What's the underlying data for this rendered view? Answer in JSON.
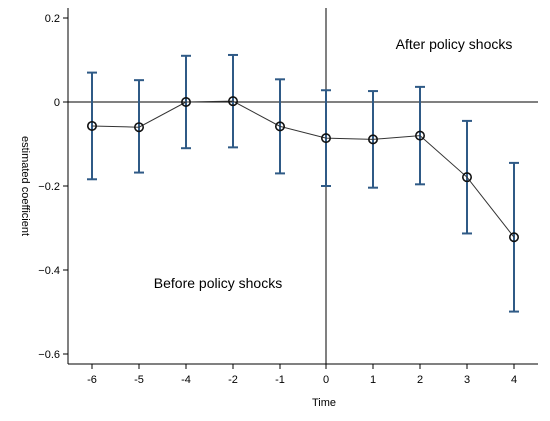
{
  "chart_data": {
    "type": "line",
    "xlabel": "Time",
    "ylabel": "estimated coefficient",
    "categories": [
      "-6",
      "-5",
      "-4",
      "-2",
      "-1",
      "0",
      "1",
      "2",
      "3",
      "4"
    ],
    "y_ticks": [
      0.2,
      0,
      -0.2,
      -0.4,
      -0.6
    ],
    "y_tick_labels": [
      "0.2",
      "0",
      "−0.2",
      "−0.4",
      "−0.6"
    ],
    "ylim": [
      -0.62,
      0.22
    ],
    "series": [
      {
        "values": [
          -0.057,
          -0.06,
          0.0,
          0.002,
          -0.058,
          -0.086,
          -0.089,
          -0.08,
          -0.179,
          -0.322
        ],
        "ci_upper": [
          0.07,
          0.052,
          0.11,
          0.112,
          0.054,
          0.028,
          0.026,
          0.036,
          -0.045,
          -0.145
        ],
        "ci_lower": [
          -0.184,
          -0.168,
          -0.11,
          -0.108,
          -0.17,
          -0.2,
          -0.204,
          -0.196,
          -0.313,
          -0.499
        ]
      }
    ],
    "reference_lines": {
      "horizontal_y": 0,
      "vertical_at_category": "0"
    },
    "annotations": [
      {
        "text": "After policy shocks"
      },
      {
        "text": "Before policy shocks"
      }
    ],
    "colors": {
      "error_bar": "#2f5a86",
      "line": "#333333",
      "marker_edge": "#111111"
    },
    "grid": false,
    "legend": "none"
  }
}
